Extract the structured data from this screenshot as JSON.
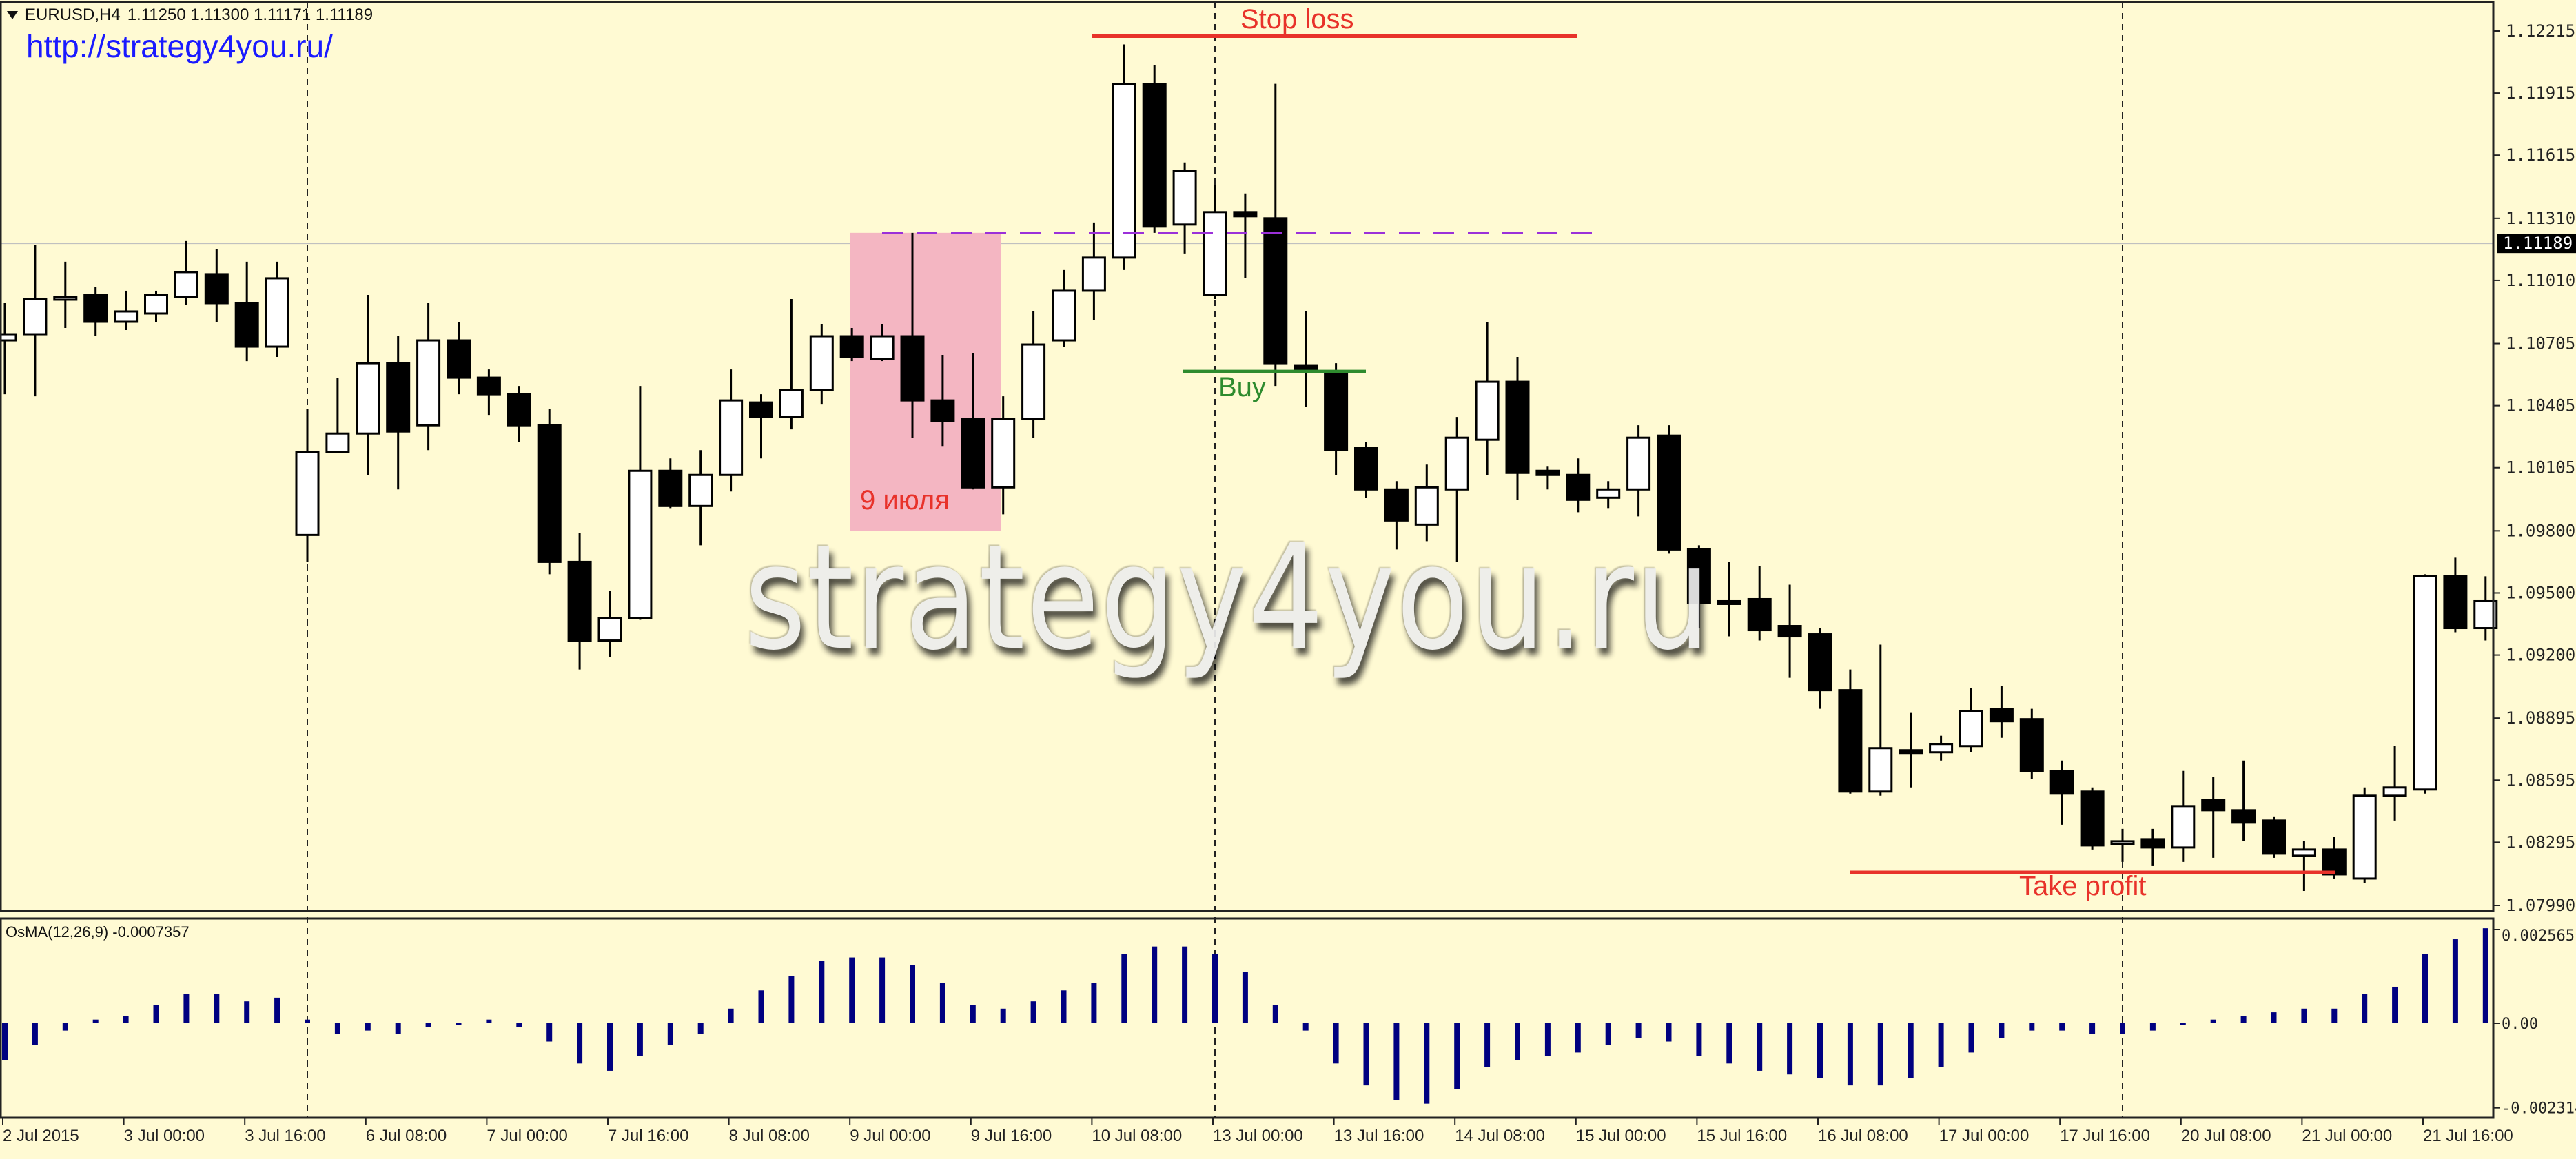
{
  "header": {
    "symbol": "EURUSD,H4",
    "ohlc": "1.11250 1.11300 1.11171 1.11189",
    "url": "http://strategy4you.ru/"
  },
  "watermark": "strategy4you.ru",
  "oscillator_label": "OsMA(12,26,9) -0.0007357",
  "annotations": {
    "stop_loss": {
      "label": "Stop loss",
      "price": 1.1219,
      "color": "#e8322a"
    },
    "buy": {
      "label": "Buy",
      "price": 1.1057,
      "color": "#2e8b2e"
    },
    "take_profit": {
      "label": "Take profit",
      "price": 1.0815,
      "color": "#e8322a"
    },
    "level": {
      "price": 1.1124,
      "color": "#9b30d9"
    },
    "highlight": {
      "label": "9 июля",
      "top": 1.1124,
      "bottom": 1.098,
      "color": "#f4b6c2",
      "label_color": "#e8322a"
    }
  },
  "current_price": {
    "value": "1.11189",
    "price": 1.11189
  },
  "chart_data": [
    {
      "type": "candlestick",
      "title": "",
      "x_tick_labels": [
        "2 Jul 2015",
        "3 Jul 00:00",
        "3 Jul 16:00",
        "6 Jul 08:00",
        "7 Jul 00:00",
        "7 Jul 16:00",
        "8 Jul 08:00",
        "9 Jul 00:00",
        "9 Jul 16:00",
        "10 Jul 08:00",
        "13 Jul 00:00",
        "13 Jul 16:00",
        "14 Jul 08:00",
        "15 Jul 00:00",
        "15 Jul 16:00",
        "16 Jul 08:00",
        "17 Jul 00:00",
        "17 Jul 16:00",
        "20 Jul 08:00",
        "21 Jul 00:00",
        "21 Jul 16:00"
      ],
      "y_tick_labels": [
        "1.12215",
        "1.11915",
        "1.11615",
        "1.11310",
        "1.11010",
        "1.10705",
        "1.10405",
        "1.10105",
        "1.09800",
        "1.09500",
        "1.09200",
        "1.08895",
        "1.08595",
        "1.08295",
        "1.07990"
      ],
      "ylim": [
        1.0799,
        1.12215
      ],
      "colors": {
        "bull": "#ffffff",
        "bear": "#000000",
        "background": "#fffad3"
      },
      "ohlc": [
        [
          1.1072,
          1.109,
          1.1046,
          1.1075
        ],
        [
          1.1075,
          1.1118,
          1.1045,
          1.1092
        ],
        [
          1.1093,
          1.111,
          1.1078,
          1.1093
        ],
        [
          1.1094,
          1.1098,
          1.1074,
          1.1081
        ],
        [
          1.1081,
          1.1096,
          1.1077,
          1.1086
        ],
        [
          1.1085,
          1.1096,
          1.1081,
          1.1094
        ],
        [
          1.1093,
          1.112,
          1.1089,
          1.1105
        ],
        [
          1.1104,
          1.1116,
          1.1081,
          1.109
        ],
        [
          1.109,
          1.111,
          1.1062,
          1.1069
        ],
        [
          1.1069,
          1.111,
          1.1064,
          1.1102
        ],
        [
          1.0978,
          1.1039,
          1.0965,
          1.1018
        ],
        [
          1.1018,
          1.1054,
          1.1018,
          1.1027
        ],
        [
          1.1027,
          1.1094,
          1.1007,
          1.1061
        ],
        [
          1.1061,
          1.1074,
          1.1,
          1.1028
        ],
        [
          1.1031,
          1.109,
          1.1019,
          1.1072
        ],
        [
          1.1072,
          1.1081,
          1.1046,
          1.1054
        ],
        [
          1.1054,
          1.1058,
          1.1036,
          1.1046
        ],
        [
          1.1046,
          1.105,
          1.1023,
          1.1031
        ],
        [
          1.1031,
          1.1039,
          1.0959,
          1.0965
        ],
        [
          1.0965,
          1.0979,
          1.0913,
          1.0927
        ],
        [
          1.0927,
          1.0951,
          1.0919,
          1.0938
        ],
        [
          1.0938,
          1.105,
          1.0937,
          1.1009
        ],
        [
          1.1009,
          1.1015,
          1.0991,
          1.0992
        ],
        [
          1.0992,
          1.1019,
          1.0973,
          1.1007
        ],
        [
          1.1007,
          1.1058,
          1.0999,
          1.1043
        ],
        [
          1.1042,
          1.1046,
          1.1015,
          1.1035
        ],
        [
          1.1035,
          1.1092,
          1.1029,
          1.1048
        ],
        [
          1.1048,
          1.108,
          1.1041,
          1.1074
        ],
        [
          1.1074,
          1.1078,
          1.1062,
          1.1064
        ],
        [
          1.1063,
          1.108,
          1.1062,
          1.1074
        ],
        [
          1.1074,
          1.1124,
          1.1025,
          1.1043
        ],
        [
          1.1043,
          1.1065,
          1.1021,
          1.1033
        ],
        [
          1.1034,
          1.1066,
          1.1,
          1.1001
        ],
        [
          1.1001,
          1.1045,
          1.0988,
          1.1034
        ],
        [
          1.1034,
          1.1086,
          1.1025,
          1.107
        ],
        [
          1.1072,
          1.1106,
          1.1069,
          1.1096
        ],
        [
          1.1096,
          1.1129,
          1.1082,
          1.1112
        ],
        [
          1.1112,
          1.1215,
          1.1106,
          1.1196
        ],
        [
          1.1196,
          1.1205,
          1.1124,
          1.1127
        ],
        [
          1.1128,
          1.1158,
          1.1114,
          1.1154
        ],
        [
          1.1094,
          1.1147,
          1.1092,
          1.1134
        ],
        [
          1.1134,
          1.1143,
          1.1102,
          1.1132
        ],
        [
          1.1131,
          1.1196,
          1.105,
          1.1061
        ],
        [
          1.106,
          1.1086,
          1.104,
          1.1058
        ],
        [
          1.1057,
          1.1061,
          1.1007,
          1.1019
        ],
        [
          1.102,
          1.1023,
          1.0996,
          1.1
        ],
        [
          1.1,
          1.1004,
          1.0971,
          1.0985
        ],
        [
          1.0983,
          1.1012,
          1.0975,
          1.1001
        ],
        [
          1.1,
          1.1035,
          1.0965,
          1.1025
        ],
        [
          1.1024,
          1.1081,
          1.1007,
          1.1052
        ],
        [
          1.1052,
          1.1064,
          1.0995,
          1.1008
        ],
        [
          1.1009,
          1.1011,
          1.1,
          1.1007
        ],
        [
          1.1007,
          1.1015,
          1.0989,
          1.0995
        ],
        [
          1.0996,
          1.1004,
          1.0991,
          1.1
        ],
        [
          1.1,
          1.1031,
          1.0987,
          1.1025
        ],
        [
          1.1026,
          1.1031,
          1.0969,
          1.0971
        ],
        [
          1.0971,
          1.0973,
          1.0933,
          1.0945
        ],
        [
          1.0946,
          1.0965,
          1.0929,
          1.0945
        ],
        [
          1.0947,
          1.0963,
          1.0927,
          1.0932
        ],
        [
          1.0934,
          1.0954,
          1.0909,
          1.0929
        ],
        [
          1.093,
          1.0933,
          1.0894,
          1.0903
        ],
        [
          1.0903,
          1.0913,
          1.0853,
          1.0854
        ],
        [
          1.0854,
          1.0925,
          1.0852,
          1.0875
        ],
        [
          1.0874,
          1.0892,
          1.0856,
          1.0873
        ],
        [
          1.0873,
          1.0881,
          1.0869,
          1.0877
        ],
        [
          1.0876,
          1.0904,
          1.0873,
          1.0893
        ],
        [
          1.0894,
          1.0905,
          1.088,
          1.0888
        ],
        [
          1.0889,
          1.0894,
          1.086,
          1.0864
        ],
        [
          1.0864,
          1.0869,
          1.0838,
          1.0853
        ],
        [
          1.0854,
          1.0856,
          1.0826,
          1.0828
        ],
        [
          1.083,
          1.0836,
          1.082,
          1.083
        ],
        [
          1.0831,
          1.0836,
          1.0818,
          1.0827
        ],
        [
          1.0827,
          1.0864,
          1.082,
          1.0847
        ],
        [
          1.085,
          1.0861,
          1.0822,
          1.0845
        ],
        [
          1.0845,
          1.0869,
          1.083,
          1.0839
        ],
        [
          1.084,
          1.0842,
          1.0822,
          1.0824
        ],
        [
          1.0823,
          1.083,
          1.0806,
          1.0826
        ],
        [
          1.0826,
          1.0832,
          1.0812,
          1.0814
        ],
        [
          1.0812,
          1.0856,
          1.081,
          1.0852
        ],
        [
          1.0852,
          1.0876,
          1.084,
          1.0856
        ],
        [
          1.0855,
          1.0959,
          1.0853,
          1.0958
        ],
        [
          1.0958,
          1.0967,
          1.0931,
          1.0933
        ],
        [
          1.0933,
          1.0958,
          1.0927,
          1.0946
        ]
      ]
    },
    {
      "type": "bar",
      "name": "OsMA(12,26,9)",
      "y_tick_labels": [
        "0.002565",
        "0.00",
        "-0.002314"
      ],
      "ylim": [
        -0.002314,
        0.002565
      ],
      "color": "#000080",
      "values": [
        -0.001,
        -0.0006,
        -0.0002,
        0.0001,
        0.0002,
        0.0005,
        0.0008,
        0.0008,
        0.0006,
        0.0007,
        0.0001,
        -0.0003,
        -0.0002,
        -0.0003,
        -0.0001,
        -5e-05,
        0.0001,
        -0.0001,
        -0.0005,
        -0.0011,
        -0.0013,
        -0.0009,
        -0.0006,
        -0.0003,
        0.0004,
        0.0009,
        0.0013,
        0.0017,
        0.0018,
        0.0018,
        0.0016,
        0.0011,
        0.0005,
        0.0004,
        0.0006,
        0.0009,
        0.0011,
        0.0019,
        0.0021,
        0.0021,
        0.0019,
        0.0014,
        0.0005,
        -0.0002,
        -0.0011,
        -0.0017,
        -0.0021,
        -0.0022,
        -0.0018,
        -0.0012,
        -0.001,
        -0.0009,
        -0.0008,
        -0.0006,
        -0.0004,
        -0.0005,
        -0.0009,
        -0.0011,
        -0.0013,
        -0.0014,
        -0.0015,
        -0.0017,
        -0.0017,
        -0.0015,
        -0.0012,
        -0.0008,
        -0.0004,
        -0.0002,
        -0.0002,
        -0.0003,
        -0.0003,
        -0.0002,
        0.0,
        0.0001,
        0.0002,
        0.0003,
        0.0004,
        0.0004,
        0.0008,
        0.001,
        0.0019,
        0.0023,
        0.0026
      ]
    }
  ]
}
